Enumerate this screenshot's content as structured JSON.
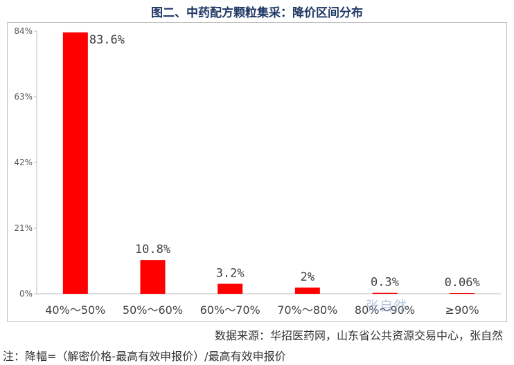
{
  "title": "图二、中药配方颗粒集采：降价区间分布",
  "source": "数据来源：华招医药网，山东省公共资源交易中心，张自然",
  "note": "注：降幅=（解密价格-最高有效申报价）/最高有效申报价",
  "watermark": "张自然",
  "chart_data": {
    "type": "bar",
    "categories": [
      "40%～50%",
      "50%～60%",
      "60%～70%",
      "70%～80%",
      "80%～90%",
      "≥90%"
    ],
    "values": [
      83.6,
      10.8,
      3.2,
      2,
      0.3,
      0.06
    ],
    "data_labels": [
      "83.6%",
      "10.8%",
      "3.2%",
      "2%",
      "0.3%",
      "0.06%"
    ],
    "y_ticks": [
      0,
      21,
      42,
      63,
      84
    ],
    "y_tick_labels": [
      "0%",
      "21%",
      "42%",
      "63%",
      "84%"
    ],
    "ylim": [
      0,
      84
    ],
    "bar_color": "#ff0000",
    "grid": false,
    "legend": "none"
  }
}
